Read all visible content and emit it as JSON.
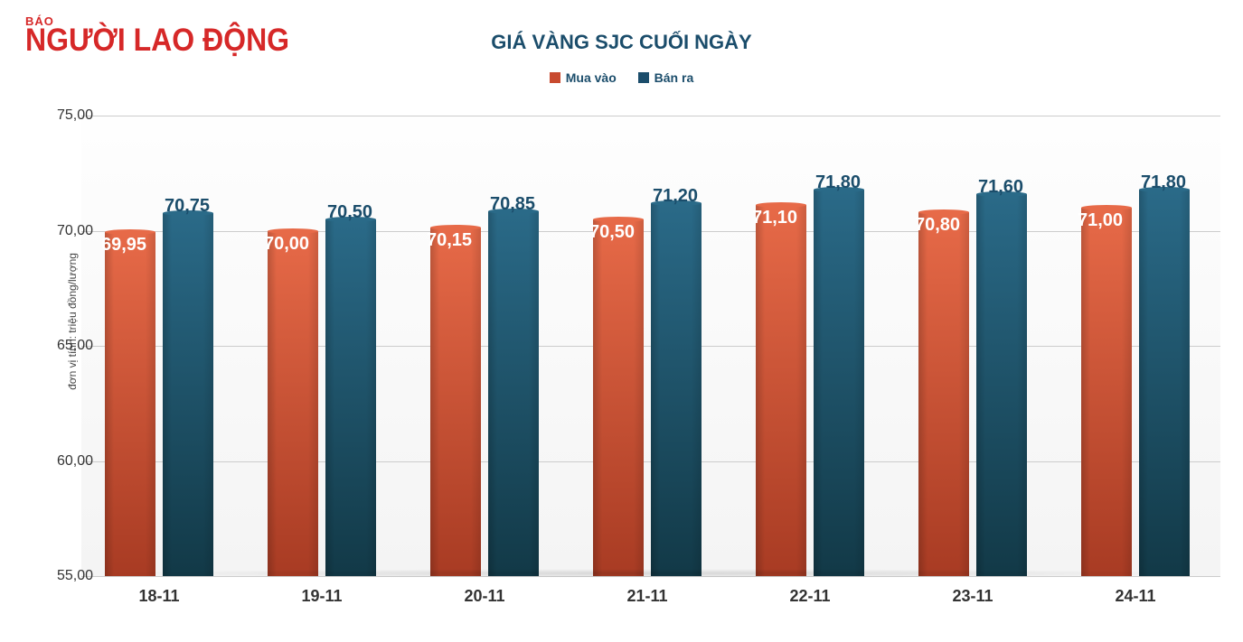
{
  "logo": {
    "line1": "BÁO",
    "line2": "NGƯỜI LAO ĐỘNG",
    "color": "#d62828"
  },
  "chart": {
    "type": "bar",
    "title": "GIÁ VÀNG SJC CUỐI NGÀY",
    "title_color": "#1b4d6b",
    "title_fontsize": 22,
    "y_axis_title": "đơn vị tính: triệu đồng/lượng",
    "legend": {
      "series1": {
        "label": "Mua vào",
        "color": "#c84a2f"
      },
      "series2": {
        "label": "Bán ra",
        "color": "#1b4d6b"
      }
    },
    "ylim": [
      55,
      75
    ],
    "ytick_step": 5,
    "yticks": [
      "55,00",
      "60,00",
      "65,00",
      "70,00",
      "75,00"
    ],
    "categories": [
      "18-11",
      "19-11",
      "20-11",
      "21-11",
      "22-11",
      "23-11",
      "24-11"
    ],
    "series1_values": [
      69.95,
      70.0,
      70.15,
      70.5,
      71.1,
      70.8,
      71.0
    ],
    "series2_values": [
      70.75,
      70.5,
      70.85,
      71.2,
      71.8,
      71.6,
      71.8
    ],
    "series1_labels": [
      "69,95",
      "70,00",
      "70,15",
      "70,50",
      "71,10",
      "70,80",
      "71,00"
    ],
    "series2_labels": [
      "70,75",
      "70,50",
      "70,85",
      "71,20",
      "71,80",
      "71,60",
      "71,80"
    ],
    "background_color": "#ffffff",
    "plot_bg_top": "#fefefe",
    "plot_bg_bottom": "#f4f4f4",
    "grid_color": "#cccccc",
    "category_font_color": "#333333",
    "value_label_fontsize": 20,
    "bar_gradient_series1": {
      "light": "#e76a48",
      "dark": "#a83b23"
    },
    "bar_gradient_series2": {
      "light": "#2a6a88",
      "dark": "#123947"
    }
  }
}
